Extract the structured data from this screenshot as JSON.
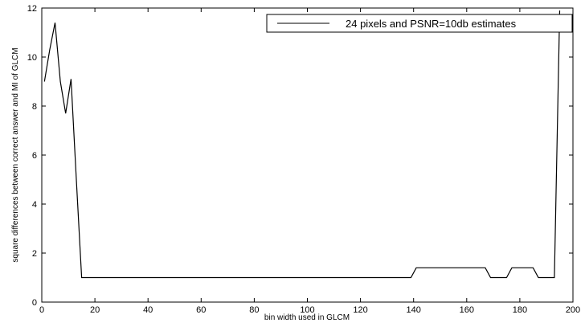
{
  "chart_data": {
    "type": "line",
    "title": "",
    "xlabel": "bin width used in GLCM",
    "ylabel": "square differences between correct answer and MI of GLCM",
    "xlim": [
      0,
      200
    ],
    "ylim": [
      0,
      12
    ],
    "xticks": [
      0,
      20,
      40,
      60,
      80,
      100,
      120,
      140,
      160,
      180,
      200
    ],
    "yticks": [
      0,
      2,
      4,
      6,
      8,
      10,
      12
    ],
    "grid": false,
    "legend_position": "top-right",
    "series": [
      {
        "name": "24 pixels and PSNR=10db estimates",
        "color": "#000000",
        "x": [
          1,
          3,
          5,
          7,
          9,
          11,
          13,
          15,
          139,
          141,
          167,
          169,
          175,
          177,
          185,
          187,
          193,
          195
        ],
        "y": [
          9.0,
          10.3,
          11.4,
          9.0,
          7.7,
          9.1,
          5.0,
          1.0,
          1.0,
          1.4,
          1.4,
          1.0,
          1.0,
          1.4,
          1.4,
          1.0,
          1.0,
          11.9
        ]
      }
    ]
  }
}
